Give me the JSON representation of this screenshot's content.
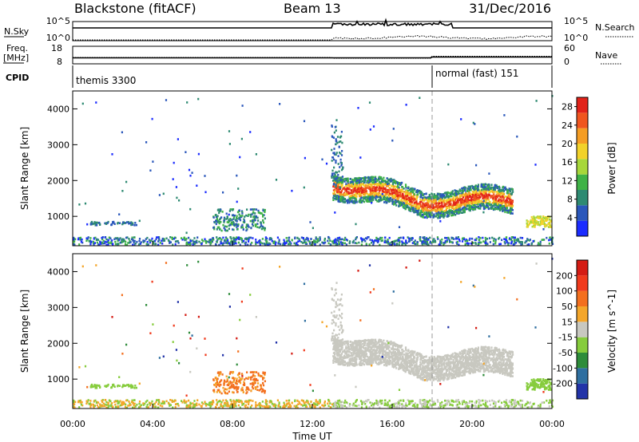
{
  "header": {
    "title": "Blackstone (fitACF)",
    "beam": "Beam 13",
    "date": "31/Dec/2016"
  },
  "param_panels": {
    "nsky_label": "N.Sky",
    "nsearch_label": "N.Search",
    "nsky_ticks": [
      "10^5",
      "10^0"
    ],
    "nsearch_ticks": [
      "10^5",
      "10^0"
    ],
    "freq_label": "Freq.",
    "freq_unit": "[MHz]",
    "freq_ticks": [
      "18",
      "8"
    ],
    "nave_label": "Nave",
    "nave_ticks": [
      "60",
      "0"
    ],
    "cpid_label": "CPID",
    "cpid_segments": [
      {
        "start_hour": 0,
        "text": "themis 3300"
      },
      {
        "start_hour": 18,
        "text": "normal (fast) 151"
      }
    ]
  },
  "chart_data": [
    {
      "type": "heatmap",
      "name": "power",
      "xlabel": "",
      "ylabel": "Slant Range [km]",
      "xlim": [
        0,
        24
      ],
      "ylim": [
        180,
        4500
      ],
      "yticks": [
        1000,
        2000,
        3000,
        4000
      ],
      "colorbar": {
        "label": "Power [dB]",
        "ticks": [
          "4",
          "8",
          "12",
          "16",
          "20",
          "24",
          "28"
        ],
        "range": [
          0,
          30
        ],
        "colors": [
          "#1b2cff",
          "#2a57bb",
          "#2e8a72",
          "#3fb246",
          "#a7d73a",
          "#f2d22a",
          "#f59d24",
          "#f0561f",
          "#e2231a"
        ]
      }
    },
    {
      "type": "heatmap",
      "name": "velocity",
      "xlabel": "Time UT",
      "ylabel": "Slant Range [km]",
      "xlim": [
        0,
        24
      ],
      "ylim": [
        180,
        4500
      ],
      "yticks": [
        1000,
        2000,
        3000,
        4000
      ],
      "xticks": [
        "00:00",
        "04:00",
        "08:00",
        "12:00",
        "16:00",
        "20:00",
        "00:00"
      ],
      "colorbar": {
        "label": "Velocity [m s^-1]",
        "ticks": [
          "200",
          "100",
          "50",
          "15",
          "-15",
          "-50",
          "-100",
          "-200"
        ],
        "colors": [
          "#2233a8",
          "#2f6fa0",
          "#2e8c3a",
          "#86cc3c",
          "#c8c8c0",
          "#f4a62a",
          "#f36f1e",
          "#f03a1c",
          "#d41c14"
        ]
      }
    }
  ]
}
